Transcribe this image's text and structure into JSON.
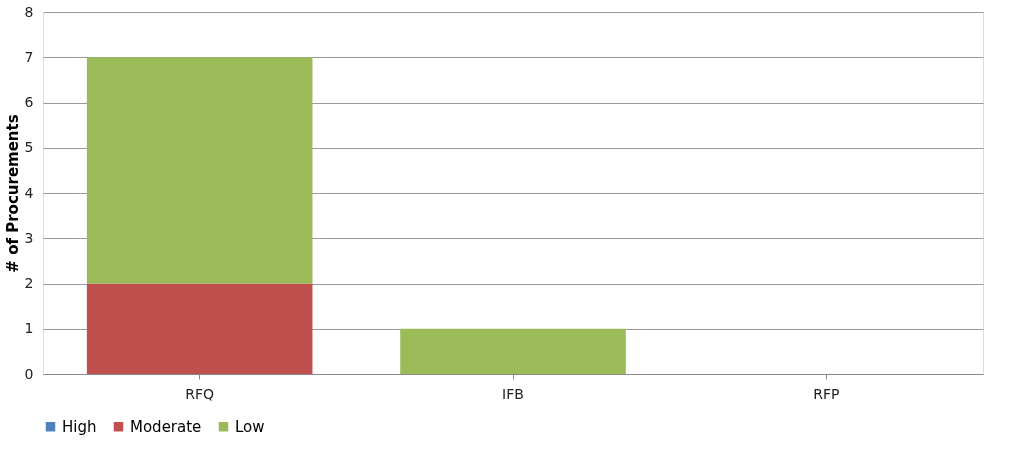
{
  "chart_data": {
    "type": "bar",
    "stacked": true,
    "ylabel": "# of Procurements",
    "categories": [
      "RFQ",
      "IFB",
      "RFP"
    ],
    "series": [
      {
        "name": "High",
        "color": "#4f81bd",
        "values": [
          0,
          0,
          0
        ]
      },
      {
        "name": "Moderate",
        "color": "#c0504d",
        "values": [
          2,
          0,
          0
        ]
      },
      {
        "name": "Low",
        "color": "#9bbb59",
        "values": [
          5,
          1,
          0
        ]
      }
    ],
    "ylim": [
      0,
      8
    ],
    "yticks": [
      0,
      1,
      2,
      3,
      4,
      5,
      6,
      7,
      8
    ],
    "grid": "y",
    "legend": "bottom"
  }
}
